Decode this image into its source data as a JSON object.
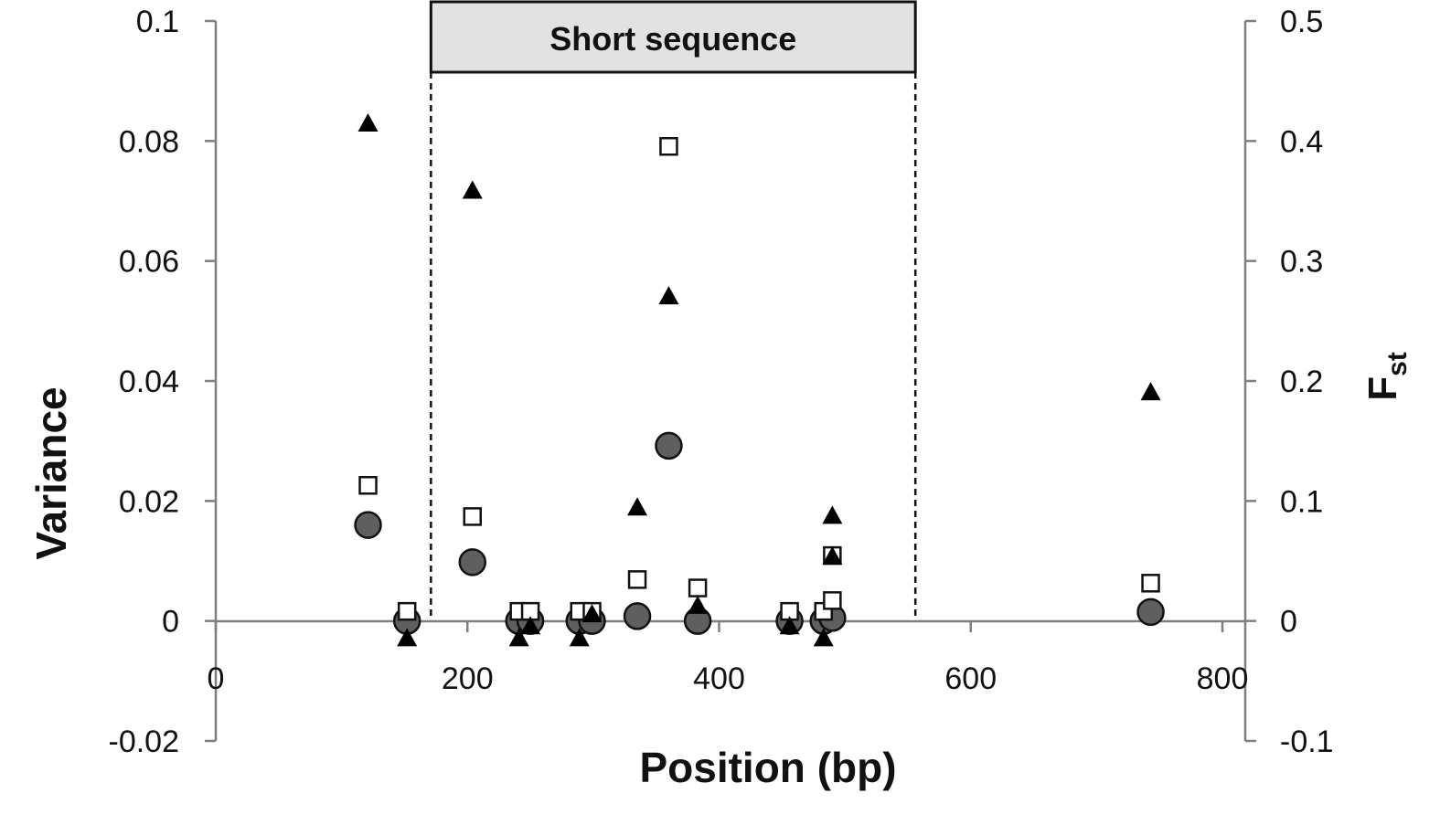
{
  "chart_data": {
    "type": "scatter",
    "title": "",
    "xlabel": "Position (bp)",
    "ylabel_left": "Variance",
    "ylabel_right_main": "F",
    "ylabel_right_sub": "st",
    "xlim": [
      0,
      800
    ],
    "xticks": [
      0,
      200,
      400,
      600,
      800
    ],
    "ylim_left": [
      -0.02,
      0.1
    ],
    "yticks_left": [
      -0.02,
      0,
      0.02,
      0.04,
      0.06,
      0.08,
      0.1
    ],
    "ylim_right": [
      -0.1,
      0.5
    ],
    "yticks_right": [
      -0.1,
      0,
      0.1,
      0.2,
      0.3,
      0.4,
      0.5
    ],
    "region": {
      "label": "Short sequence",
      "x_start": 171,
      "x_end": 556
    },
    "series": [
      {
        "marker": "circle",
        "axis": "left",
        "color": "#5f5f5f",
        "points": [
          [
            121,
            0.016
          ],
          [
            152,
            0
          ],
          [
            204,
            0.0098
          ],
          [
            241,
            0
          ],
          [
            250,
            0
          ],
          [
            289,
            0
          ],
          [
            299,
            0
          ],
          [
            335,
            0.0008
          ],
          [
            360,
            0.0292
          ],
          [
            383,
            0
          ],
          [
            456,
            0
          ],
          [
            483,
            0
          ],
          [
            490,
            0.0005
          ],
          [
            743,
            0.0015
          ]
        ]
      },
      {
        "marker": "square",
        "axis": "left",
        "color": "#ffffff",
        "points": [
          [
            121,
            0.0226
          ],
          [
            152,
            0.0016
          ],
          [
            204,
            0.0174
          ],
          [
            241,
            0.0016
          ],
          [
            250,
            0.0016
          ],
          [
            289,
            0.0016
          ],
          [
            299,
            0.0016
          ],
          [
            335,
            0.0069
          ],
          [
            360,
            0.0791
          ],
          [
            383,
            0.0055
          ],
          [
            456,
            0.0016
          ],
          [
            483,
            0.0016
          ],
          [
            490,
            0.0109
          ],
          [
            490,
            0.0034
          ],
          [
            743,
            0.0063
          ]
        ]
      },
      {
        "marker": "triangle",
        "axis": "right",
        "color": "#000000",
        "points": [
          [
            121,
            0.414
          ],
          [
            152,
            -0.015
          ],
          [
            204,
            0.358
          ],
          [
            241,
            -0.015
          ],
          [
            250,
            -0.005
          ],
          [
            289,
            -0.015
          ],
          [
            299,
            0.005
          ],
          [
            335,
            0.094
          ],
          [
            360,
            0.27
          ],
          [
            383,
            0.012
          ],
          [
            456,
            -0.005
          ],
          [
            483,
            -0.015
          ],
          [
            490,
            0.087
          ],
          [
            490,
            0.053
          ],
          [
            743,
            0.19
          ]
        ]
      }
    ]
  }
}
